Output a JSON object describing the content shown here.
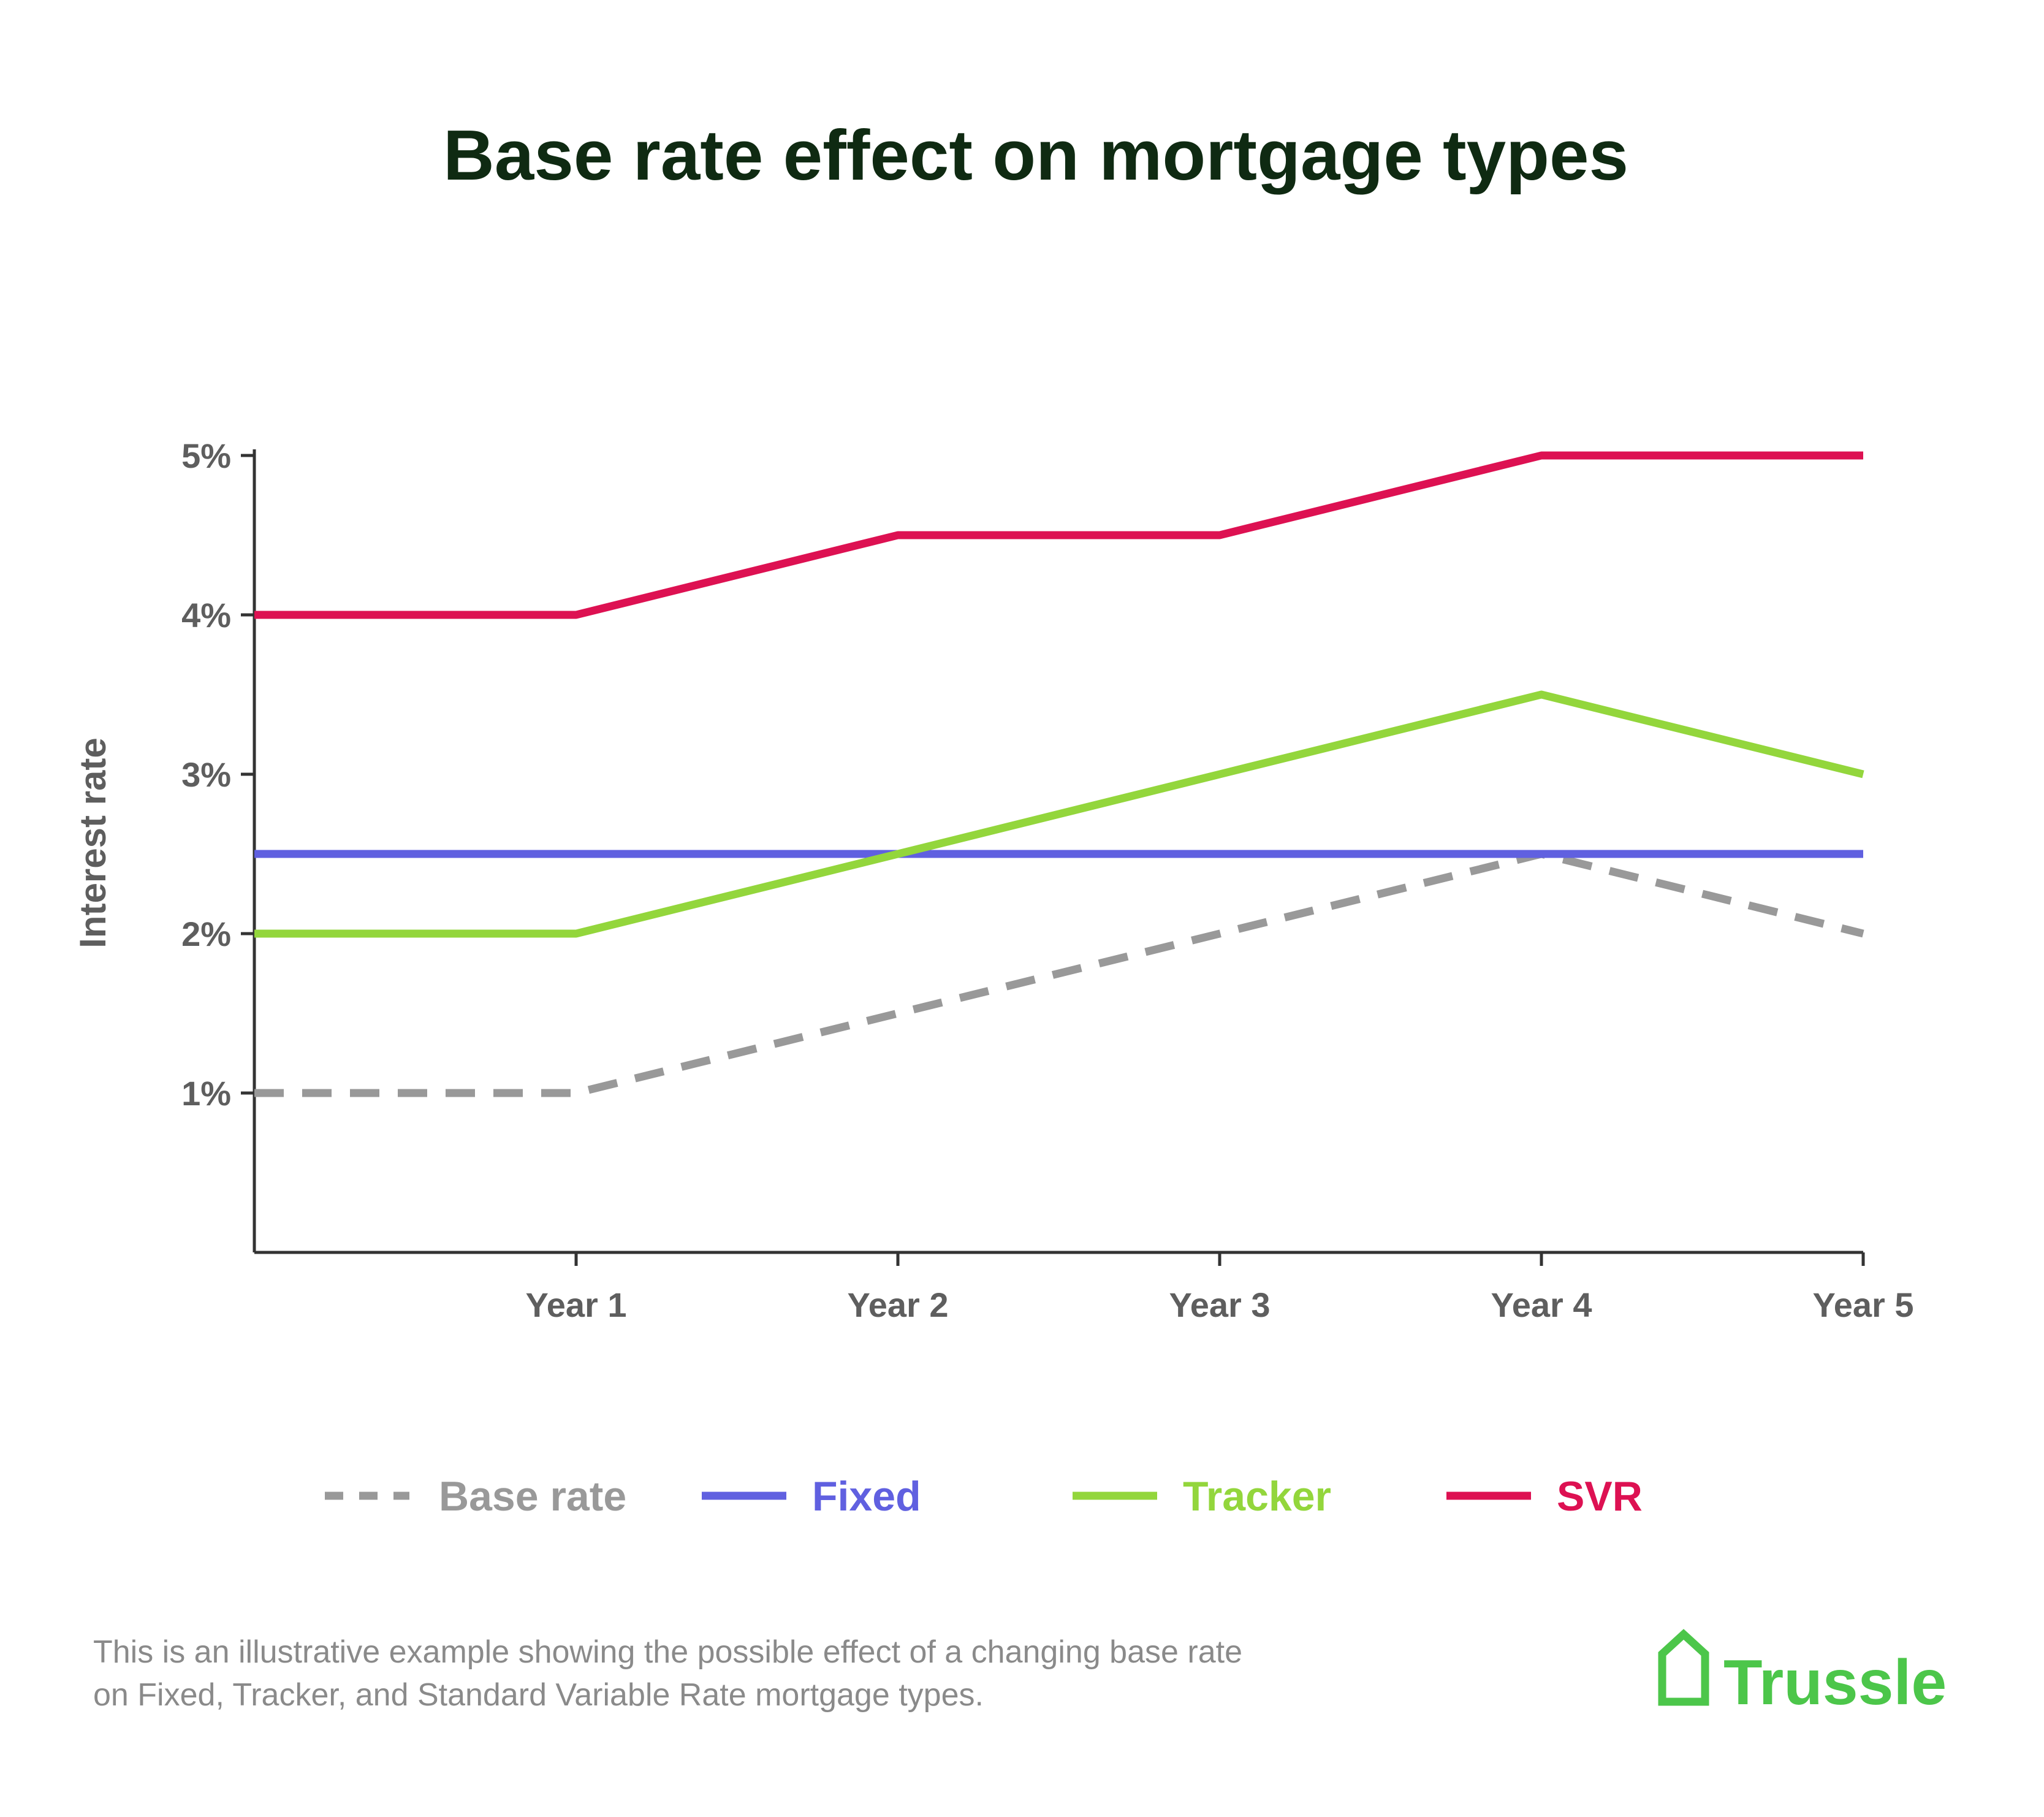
{
  "chart_data": {
    "type": "line",
    "title": "Base rate effect on mortgage types",
    "ylabel": "Interest rate",
    "xlabel": "",
    "categories": [
      "",
      "Year 1",
      "Year 2",
      "Year 3",
      "Year 4",
      "Year 5"
    ],
    "x_tick_labels": [
      "Year 1",
      "Year 2",
      "Year 3",
      "Year 4",
      "Year 5"
    ],
    "y_ticks": [
      1,
      2,
      3,
      4,
      5
    ],
    "y_tick_labels": [
      "1%",
      "2%",
      "3%",
      "4%",
      "5%"
    ],
    "ylim": [
      0,
      5
    ],
    "grid": false,
    "legend_position": "bottom",
    "series": [
      {
        "name": "Base rate",
        "values": [
          1.0,
          1.0,
          1.5,
          2.0,
          2.5,
          2.0
        ],
        "color": "#999999",
        "dashed": true
      },
      {
        "name": "Fixed",
        "values": [
          2.5,
          2.5,
          2.5,
          2.5,
          2.5,
          2.5
        ],
        "color": "#6060e0",
        "dashed": false
      },
      {
        "name": "Tracker",
        "values": [
          2.0,
          2.0,
          2.5,
          3.0,
          3.5,
          3.0
        ],
        "color": "#93d63c",
        "dashed": false
      },
      {
        "name": "SVR",
        "values": [
          4.0,
          4.0,
          4.5,
          4.5,
          5.0,
          5.0
        ],
        "color": "#dd1152",
        "dashed": false
      }
    ]
  },
  "footnote": {
    "line1": "This is an illustrative example showing the possible effect of a changing base rate",
    "line2": "on Fixed, Tracker, and Standard Variable Rate mortgage types."
  },
  "brand": {
    "name": "Trussle",
    "icon": "house-icon",
    "color": "#4cc64a"
  },
  "colors": {
    "title": "#0f2a12",
    "axis": "#333333",
    "tick_text": "#5e5e5e"
  }
}
